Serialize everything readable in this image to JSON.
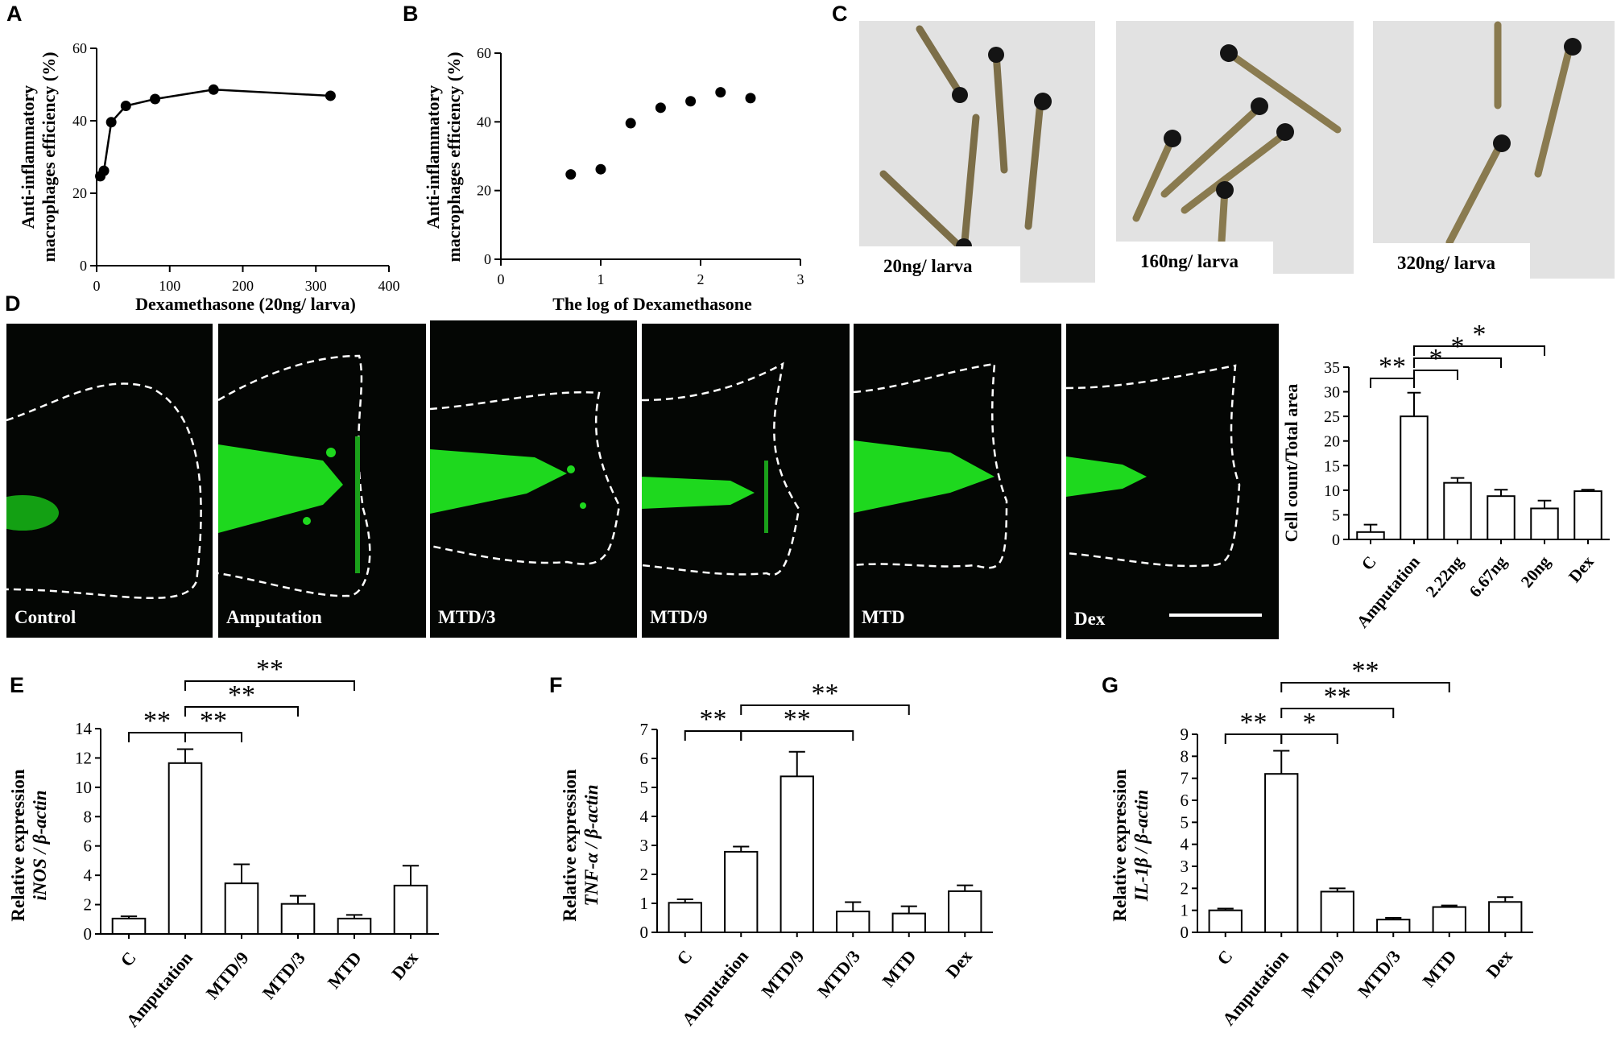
{
  "panels": {
    "A": {
      "letter": "A",
      "xlabel": "Dexamethasone (20ng/ larva)",
      "ylabel_line1": "Anti-inflammatory",
      "ylabel_line2": "macrophages efficiency  (%)",
      "x_ticks": [
        "0",
        "100",
        "200",
        "300",
        "400"
      ],
      "y_ticks": [
        "0",
        "20",
        "40",
        "60"
      ]
    },
    "B": {
      "letter": "B",
      "xlabel": "The log of Dexamethasone",
      "ylabel_line1": "Anti-inflammatory",
      "ylabel_line2": "macrophages efficiency  (%)",
      "x_ticks": [
        "0",
        "1",
        "2",
        "3"
      ],
      "y_ticks": [
        "0",
        "20",
        "40",
        "60"
      ]
    },
    "C": {
      "letter": "C",
      "photos": [
        {
          "label": "20ng/ larva"
        },
        {
          "label": "160ng/ larva"
        },
        {
          "label": "320ng/ larva"
        }
      ]
    },
    "D": {
      "letter": "D",
      "images": [
        {
          "label": "Control"
        },
        {
          "label": "Amputation"
        },
        {
          "label": "MTD/3"
        },
        {
          "label": "MTD/9"
        },
        {
          "label": "MTD"
        },
        {
          "label": "Dex"
        }
      ],
      "ylabel": "Cell count/Total area",
      "y_ticks": [
        "0",
        "5",
        "10",
        "15",
        "20",
        "25",
        "30",
        "35"
      ],
      "sig_marks": [
        "**",
        "*",
        "*",
        "*"
      ]
    },
    "E": {
      "letter": "E",
      "ylabel_line1": "Relative expression",
      "ylabel_line2": "iNOS / β-actin",
      "y_ticks": [
        "0",
        "2",
        "4",
        "6",
        "8",
        "10",
        "12",
        "14"
      ],
      "sig_marks": [
        "**",
        "**",
        "**",
        "**"
      ]
    },
    "F": {
      "letter": "F",
      "ylabel_line1": "Relative expression",
      "ylabel_line2": "TNF-α / β-actin",
      "y_ticks": [
        "0",
        "1",
        "2",
        "3",
        "4",
        "5",
        "6",
        "7"
      ],
      "sig_marks": [
        "**",
        "**",
        "**"
      ]
    },
    "G": {
      "letter": "G",
      "ylabel_line1": "Relative expression",
      "ylabel_line2": "IL-1β / β-actin",
      "y_ticks": [
        "0",
        "1",
        "2",
        "3",
        "4",
        "5",
        "6",
        "7",
        "8",
        "9"
      ],
      "sig_marks": [
        "**",
        "*",
        "**",
        "**"
      ]
    }
  },
  "chart_data": [
    {
      "id": "A",
      "type": "line",
      "x": [
        5,
        10,
        20,
        40,
        80,
        160,
        320
      ],
      "y": [
        24.7,
        26.2,
        39.6,
        44.1,
        46.0,
        48.6,
        46.9
      ],
      "xlim": [
        0,
        400
      ],
      "ylim": [
        0,
        60
      ],
      "xlabel": "Dexamethasone (20ng/ larva)",
      "ylabel": "Anti-inflammatory macrophages efficiency  (%)"
    },
    {
      "id": "B",
      "type": "scatter",
      "x": [
        0.7,
        1.0,
        1.3,
        1.6,
        1.9,
        2.2,
        2.5
      ],
      "y": [
        24.7,
        26.2,
        39.6,
        44.1,
        46.0,
        48.6,
        46.9
      ],
      "xlim": [
        0,
        3
      ],
      "ylim": [
        0,
        60
      ],
      "xlabel": "The log of Dexamethasone",
      "ylabel": "Anti-inflammatory macrophages efficiency  (%)"
    },
    {
      "id": "D",
      "type": "bar",
      "categories": [
        "C",
        "Amputation",
        "2.22ng",
        "6.67ng",
        "20ng",
        "Dex"
      ],
      "values": [
        1.5,
        25.0,
        11.5,
        8.8,
        6.3,
        9.8
      ],
      "errors": [
        1.5,
        4.8,
        1.0,
        1.3,
        1.6,
        0.3
      ],
      "ylim": [
        0,
        35
      ],
      "ylabel": "Cell count/Total area"
    },
    {
      "id": "E",
      "type": "bar",
      "categories": [
        "C",
        "Amputation",
        "MTD/9",
        "MTD/3",
        "MTD",
        "Dex"
      ],
      "values": [
        1.05,
        11.65,
        3.45,
        2.05,
        1.05,
        3.3
      ],
      "errors": [
        0.15,
        0.95,
        1.3,
        0.55,
        0.25,
        1.35
      ],
      "ylim": [
        0,
        14
      ],
      "ylabel": "Relative expression iNOS / β-actin"
    },
    {
      "id": "F",
      "type": "bar",
      "categories": [
        "C",
        "Amputation",
        "MTD/9",
        "MTD/3",
        "MTD",
        "Dex"
      ],
      "values": [
        1.02,
        2.78,
        5.38,
        0.72,
        0.65,
        1.42
      ],
      "errors": [
        0.12,
        0.18,
        0.85,
        0.32,
        0.25,
        0.2
      ],
      "ylim": [
        0,
        7
      ],
      "ylabel": "Relative expression TNF-α / β-actin"
    },
    {
      "id": "G",
      "type": "bar",
      "categories": [
        "C",
        "Amputation",
        "MTD/9",
        "MTD/3",
        "MTD",
        "Dex"
      ],
      "values": [
        1.0,
        7.2,
        1.85,
        0.58,
        1.15,
        1.38
      ],
      "errors": [
        0.08,
        1.05,
        0.15,
        0.08,
        0.07,
        0.22
      ],
      "ylim": [
        0,
        9
      ],
      "ylabel": "Relative expression IL-1β / β-actin"
    }
  ]
}
